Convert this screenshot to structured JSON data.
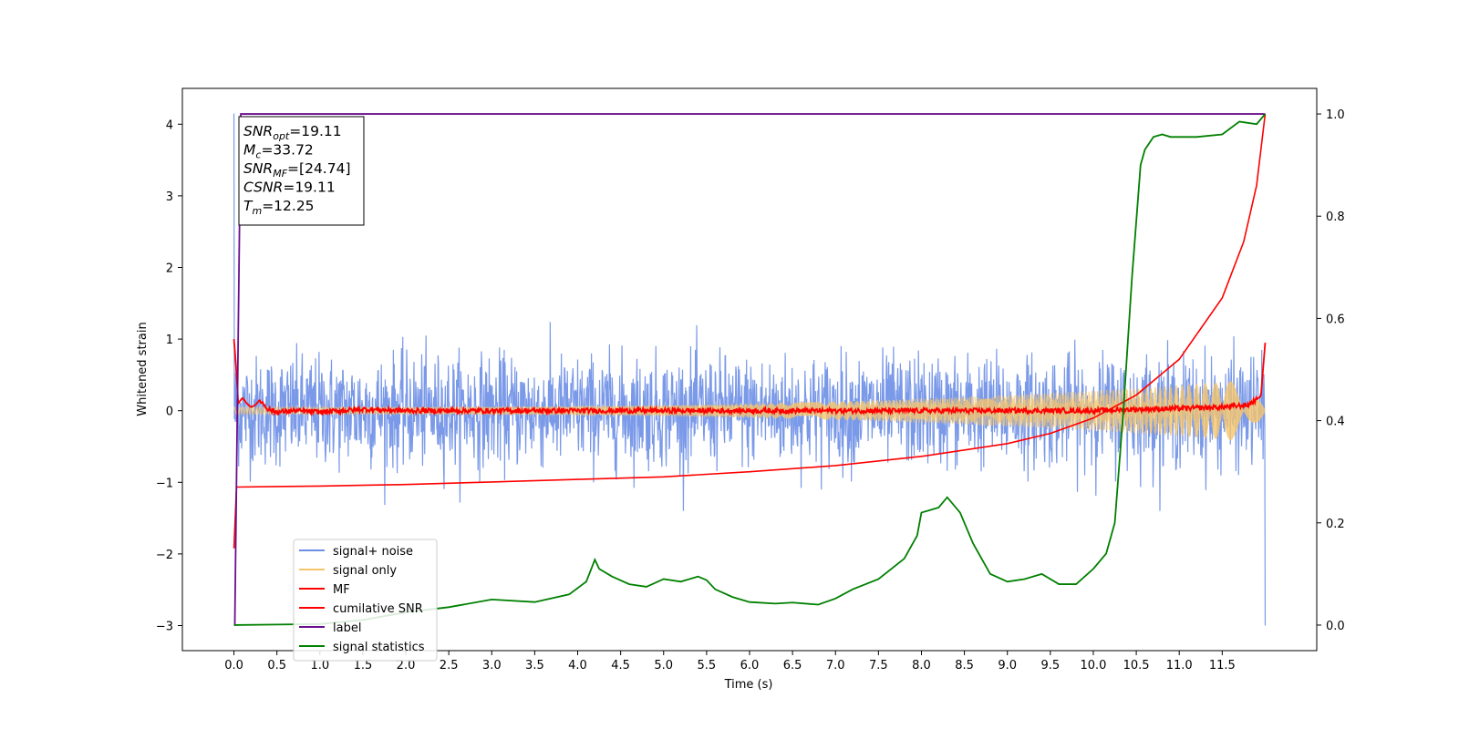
{
  "chart_data": {
    "type": "line",
    "xlabel": "Time (s)",
    "ylabel": "Whitened strain",
    "xlim": [
      -0.6,
      12.6
    ],
    "ylim": [
      -3.35,
      4.5
    ],
    "y2lim": [
      -0.05,
      1.05
    ],
    "x_ticks": [
      0.0,
      0.5,
      1.0,
      1.5,
      2.0,
      2.5,
      3.0,
      3.5,
      4.0,
      4.5,
      5.0,
      5.5,
      6.0,
      6.5,
      7.0,
      7.5,
      8.0,
      8.5,
      9.0,
      9.5,
      10.0,
      10.5,
      11.0,
      11.5
    ],
    "x_tick_labels": [
      "0.0",
      "0.5",
      "1.0",
      "1.5",
      "2.0",
      "2.5",
      "3.0",
      "3.5",
      "4.0",
      "4.5",
      "5.0",
      "5.5",
      "6.0",
      "6.5",
      "7.0",
      "7.5",
      "8.0",
      "8.5",
      "9.0",
      "9.5",
      "10.0",
      "10.5",
      "11.0",
      "11.5"
    ],
    "y_ticks": [
      -3,
      -2,
      -1,
      0,
      1,
      2,
      3,
      4
    ],
    "y_tick_labels": [
      "−3",
      "−2",
      "−1",
      "0",
      "1",
      "2",
      "3",
      "4"
    ],
    "y2_ticks": [
      0.0,
      0.2,
      0.4,
      0.6,
      0.8,
      1.0
    ],
    "y2_tick_labels": [
      "0.0",
      "0.2",
      "0.4",
      "0.6",
      "0.8",
      "1.0"
    ],
    "grid": false,
    "legend_position": "lower-left",
    "annotation": [
      {
        "base": "SNR",
        "sub": "opt",
        "value": "=19.11"
      },
      {
        "base": "M",
        "sub": "c",
        "value": "=33.72"
      },
      {
        "base": "SNR",
        "sub": "MF",
        "value": "=[24.74]"
      },
      {
        "base": "CSNR",
        "sub": "",
        "value": "=19.11"
      },
      {
        "base": "T",
        "sub": "m",
        "value": "=12.25"
      }
    ],
    "series": [
      {
        "name": "signal+ noise",
        "color": "#6c8ee6",
        "axis": "left",
        "kind": "noise",
        "x_range": [
          0.0,
          12.0
        ],
        "typical_range": [
          -0.9,
          0.9
        ],
        "extremes": [
          -1.4,
          1.35
        ],
        "spike_start": [
          0.0,
          4.15
        ],
        "spike_end": [
          12.0,
          -3.0
        ]
      },
      {
        "name": "signal only",
        "color": "#f6c56b",
        "axis": "left",
        "kind": "chirp",
        "x_range": [
          0.0,
          12.0
        ],
        "amplitude_start": 0.05,
        "amplitude_end": 0.45
      },
      {
        "name": "MF",
        "color": "#ff0000",
        "axis": "left",
        "x": [
          0.0,
          0.02,
          0.05,
          0.08,
          0.1,
          0.15,
          0.2,
          0.25,
          0.3,
          0.4,
          0.5,
          0.7,
          1.0,
          1.5,
          2.0,
          3.0,
          4.0,
          5.0,
          6.0,
          7.0,
          8.0,
          9.0,
          10.0,
          10.5,
          11.0,
          11.5,
          11.8,
          11.95,
          12.0
        ],
        "y": [
          1.0,
          0.7,
          0.1,
          0.15,
          0.18,
          0.1,
          0.05,
          0.08,
          0.15,
          0.02,
          -0.02,
          0.0,
          -0.02,
          0.02,
          0.0,
          0.0,
          0.0,
          0.0,
          0.0,
          0.0,
          0.0,
          0.0,
          0.0,
          0.02,
          0.03,
          0.05,
          0.08,
          0.2,
          0.95
        ]
      },
      {
        "name": "cumilative SNR",
        "color": "#ff0000",
        "axis": "right",
        "x": [
          0.0,
          0.03,
          0.5,
          1.0,
          2.0,
          3.0,
          4.0,
          5.0,
          6.0,
          7.0,
          8.0,
          9.0,
          9.5,
          10.0,
          10.5,
          11.0,
          11.5,
          11.75,
          11.9,
          12.0
        ],
        "y": [
          0.15,
          0.27,
          0.271,
          0.272,
          0.275,
          0.28,
          0.285,
          0.29,
          0.3,
          0.312,
          0.33,
          0.355,
          0.375,
          0.405,
          0.45,
          0.52,
          0.64,
          0.75,
          0.86,
          1.0
        ]
      },
      {
        "name": "label",
        "color": "#6a0f8e",
        "axis": "right",
        "x": [
          0.0,
          0.01,
          0.08,
          12.0
        ],
        "y": [
          0.0,
          0.0,
          1.0,
          1.0
        ]
      },
      {
        "name": "signal statistics",
        "color": "#008000",
        "axis": "right",
        "x": [
          0.0,
          0.5,
          1.0,
          1.5,
          2.0,
          2.5,
          3.0,
          3.5,
          3.9,
          4.1,
          4.2,
          4.25,
          4.4,
          4.6,
          4.8,
          5.0,
          5.2,
          5.4,
          5.5,
          5.6,
          5.8,
          6.0,
          6.3,
          6.5,
          6.8,
          7.0,
          7.2,
          7.5,
          7.8,
          7.95,
          8.0,
          8.2,
          8.3,
          8.45,
          8.6,
          8.8,
          9.0,
          9.2,
          9.4,
          9.6,
          9.8,
          10.0,
          10.15,
          10.25,
          10.35,
          10.45,
          10.55,
          10.6,
          10.7,
          10.8,
          10.9,
          11.0,
          11.2,
          11.5,
          11.7,
          11.9,
          11.95,
          12.0
        ],
        "y": [
          0.0,
          0.001,
          0.002,
          0.01,
          0.025,
          0.035,
          0.05,
          0.045,
          0.06,
          0.085,
          0.128,
          0.11,
          0.095,
          0.08,
          0.075,
          0.09,
          0.085,
          0.095,
          0.088,
          0.07,
          0.055,
          0.045,
          0.042,
          0.044,
          0.04,
          0.052,
          0.07,
          0.09,
          0.13,
          0.175,
          0.22,
          0.23,
          0.25,
          0.22,
          0.16,
          0.1,
          0.085,
          0.09,
          0.1,
          0.08,
          0.08,
          0.11,
          0.14,
          0.2,
          0.42,
          0.68,
          0.9,
          0.93,
          0.955,
          0.96,
          0.955,
          0.955,
          0.955,
          0.96,
          0.985,
          0.98,
          0.99,
          1.0
        ]
      }
    ]
  }
}
